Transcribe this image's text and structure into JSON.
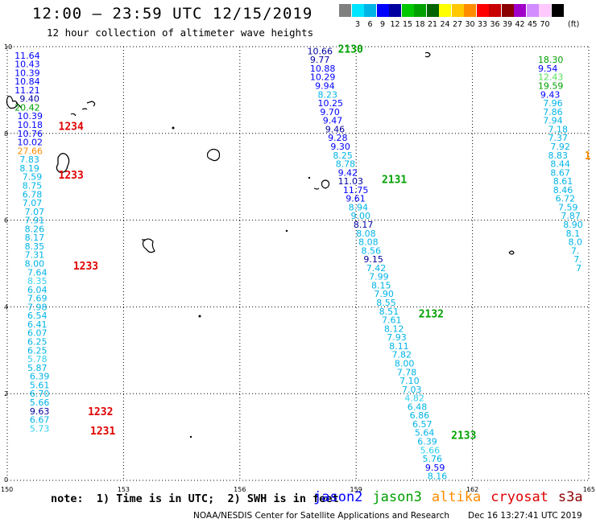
{
  "title": "12:00 – 23:59 UTC 12/15/2019",
  "subtitle": "12 hour collection of altimeter wave heights",
  "color_scale": {
    "unit": "(ft)",
    "labels": [
      "",
      "3",
      "6",
      "9",
      "12",
      "15",
      "18",
      "21",
      "24",
      "27",
      "30",
      "33",
      "36",
      "39",
      "42",
      "45",
      "70",
      ""
    ],
    "colors": [
      "#808080",
      "#00e5ff",
      "#00b4e6",
      "#0000ff",
      "#0000a0",
      "#00c800",
      "#00a000",
      "#006400",
      "#ffff00",
      "#ffc800",
      "#ff8c00",
      "#ff0000",
      "#c80000",
      "#8b0000",
      "#a000c8",
      "#d28cff",
      "#ffc8ff",
      "#000000"
    ]
  },
  "axes": {
    "x_ticks": [
      "150",
      "153",
      "156",
      "159",
      "162",
      "165"
    ],
    "y_ticks": [
      "0",
      "2",
      "4",
      "6",
      "8",
      "10"
    ]
  },
  "satellite_colors": {
    "cyan": "#00b4e6",
    "lightcyan": "#2fd0ef",
    "blue": "#0000ff",
    "navy": "#0000a0",
    "green": "#00a000",
    "lightgreen": "#55e055",
    "orange": "#ff8c00",
    "red": "#e00000"
  },
  "tracks": [
    {
      "name": "west-track",
      "points": [
        {
          "lon": 150.19,
          "lat": 9.8,
          "v": "11.64",
          "c": "blue"
        },
        {
          "lon": 150.19,
          "lat": 9.6,
          "v": "10.43",
          "c": "blue"
        },
        {
          "lon": 150.19,
          "lat": 9.4,
          "v": "10.39",
          "c": "blue"
        },
        {
          "lon": 150.19,
          "lat": 9.2,
          "v": "10.84",
          "c": "blue"
        },
        {
          "lon": 150.19,
          "lat": 9.0,
          "v": "11.21",
          "c": "blue"
        },
        {
          "lon": 150.32,
          "lat": 8.8,
          "v": "9.40",
          "c": "navy"
        },
        {
          "lon": 150.19,
          "lat": 8.6,
          "v": "20.42",
          "c": "green"
        },
        {
          "lon": 150.26,
          "lat": 8.4,
          "v": "10.39",
          "c": "blue"
        },
        {
          "lon": 150.26,
          "lat": 8.2,
          "v": "10.18",
          "c": "blue"
        },
        {
          "lon": 150.26,
          "lat": 8.0,
          "v": "10.76",
          "c": "blue"
        },
        {
          "lon": 150.26,
          "lat": 7.8,
          "v": "10.02",
          "c": "blue"
        },
        {
          "lon": 150.26,
          "lat": 7.6,
          "v": "27.66",
          "c": "orange"
        },
        {
          "lon": 150.32,
          "lat": 7.4,
          "v": "7.83",
          "c": "cyan"
        },
        {
          "lon": 150.32,
          "lat": 7.2,
          "v": "8.19",
          "c": "cyan"
        },
        {
          "lon": 150.39,
          "lat": 7.0,
          "v": "7.59",
          "c": "cyan"
        },
        {
          "lon": 150.39,
          "lat": 6.8,
          "v": "8.75",
          "c": "cyan"
        },
        {
          "lon": 150.39,
          "lat": 6.6,
          "v": "6.78",
          "c": "cyan"
        },
        {
          "lon": 150.39,
          "lat": 6.4,
          "v": "7.07",
          "c": "cyan"
        },
        {
          "lon": 150.45,
          "lat": 6.2,
          "v": "7.07",
          "c": "cyan"
        },
        {
          "lon": 150.45,
          "lat": 6.0,
          "v": "7.91",
          "c": "cyan"
        },
        {
          "lon": 150.45,
          "lat": 5.8,
          "v": "8.26",
          "c": "cyan"
        },
        {
          "lon": 150.45,
          "lat": 5.6,
          "v": "8.17",
          "c": "cyan"
        },
        {
          "lon": 150.45,
          "lat": 5.4,
          "v": "8.35",
          "c": "cyan"
        },
        {
          "lon": 150.45,
          "lat": 5.2,
          "v": "7.31",
          "c": "cyan"
        },
        {
          "lon": 150.45,
          "lat": 5.0,
          "v": "8.00",
          "c": "cyan"
        },
        {
          "lon": 150.52,
          "lat": 4.8,
          "v": "7.64",
          "c": "cyan"
        },
        {
          "lon": 150.52,
          "lat": 4.6,
          "v": "8.35",
          "c": "lightcyan"
        },
        {
          "lon": 150.52,
          "lat": 4.4,
          "v": "6.04",
          "c": "cyan"
        },
        {
          "lon": 150.52,
          "lat": 4.2,
          "v": "7.69",
          "c": "cyan"
        },
        {
          "lon": 150.52,
          "lat": 4.0,
          "v": "7.98",
          "c": "cyan"
        },
        {
          "lon": 150.52,
          "lat": 3.8,
          "v": "6.54",
          "c": "cyan"
        },
        {
          "lon": 150.52,
          "lat": 3.6,
          "v": "6.41",
          "c": "cyan"
        },
        {
          "lon": 150.52,
          "lat": 3.4,
          "v": "6.07",
          "c": "cyan"
        },
        {
          "lon": 150.52,
          "lat": 3.2,
          "v": "6.25",
          "c": "cyan"
        },
        {
          "lon": 150.52,
          "lat": 3.0,
          "v": "6.25",
          "c": "cyan"
        },
        {
          "lon": 150.52,
          "lat": 2.8,
          "v": "5.78",
          "c": "lightcyan"
        },
        {
          "lon": 150.52,
          "lat": 2.6,
          "v": "5.87",
          "c": "cyan"
        },
        {
          "lon": 150.58,
          "lat": 2.4,
          "v": "6.39",
          "c": "cyan"
        },
        {
          "lon": 150.58,
          "lat": 2.2,
          "v": "5.61",
          "c": "cyan"
        },
        {
          "lon": 150.58,
          "lat": 2.0,
          "v": "6.70",
          "c": "cyan"
        },
        {
          "lon": 150.58,
          "lat": 1.8,
          "v": "5.66",
          "c": "cyan"
        },
        {
          "lon": 150.58,
          "lat": 1.6,
          "v": "9.63",
          "c": "navy"
        },
        {
          "lon": 150.58,
          "lat": 1.4,
          "v": "6.67",
          "c": "cyan"
        },
        {
          "lon": 150.58,
          "lat": 1.2,
          "v": "5.73",
          "c": "lightcyan"
        }
      ]
    },
    {
      "name": "middle-track",
      "points": [
        {
          "lon": 157.74,
          "lat": 9.9,
          "v": "10.66",
          "c": "navy"
        },
        {
          "lon": 157.81,
          "lat": 9.7,
          "v": "9.77",
          "c": "navy"
        },
        {
          "lon": 157.81,
          "lat": 9.5,
          "v": "10.88",
          "c": "blue"
        },
        {
          "lon": 157.81,
          "lat": 9.3,
          "v": "10.29",
          "c": "blue"
        },
        {
          "lon": 157.94,
          "lat": 9.1,
          "v": "9.94",
          "c": "blue"
        },
        {
          "lon": 158.01,
          "lat": 8.9,
          "v": "8.23",
          "c": "cyan"
        },
        {
          "lon": 158.01,
          "lat": 8.7,
          "v": "10.25",
          "c": "blue"
        },
        {
          "lon": 158.07,
          "lat": 8.5,
          "v": "9.70",
          "c": "blue"
        },
        {
          "lon": 158.14,
          "lat": 8.3,
          "v": "9.47",
          "c": "blue"
        },
        {
          "lon": 158.2,
          "lat": 8.1,
          "v": "9.46",
          "c": "navy"
        },
        {
          "lon": 158.27,
          "lat": 7.9,
          "v": "9.28",
          "c": "blue"
        },
        {
          "lon": 158.34,
          "lat": 7.7,
          "v": "9.30",
          "c": "blue"
        },
        {
          "lon": 158.4,
          "lat": 7.5,
          "v": "8.25",
          "c": "cyan"
        },
        {
          "lon": 158.47,
          "lat": 7.3,
          "v": "8.78",
          "c": "cyan"
        },
        {
          "lon": 158.53,
          "lat": 7.1,
          "v": "9.42",
          "c": "blue"
        },
        {
          "lon": 158.53,
          "lat": 6.9,
          "v": "11.03",
          "c": "navy"
        },
        {
          "lon": 158.66,
          "lat": 6.7,
          "v": "11.75",
          "c": "blue"
        },
        {
          "lon": 158.73,
          "lat": 6.5,
          "v": "9.61",
          "c": "blue"
        },
        {
          "lon": 158.8,
          "lat": 6.3,
          "v": "8.94",
          "c": "cyan"
        },
        {
          "lon": 158.86,
          "lat": 6.1,
          "v": "9.00",
          "c": "cyan"
        },
        {
          "lon": 158.93,
          "lat": 5.9,
          "v": "8.17",
          "c": "navy"
        },
        {
          "lon": 159.0,
          "lat": 5.7,
          "v": "8.08",
          "c": "cyan"
        },
        {
          "lon": 159.06,
          "lat": 5.5,
          "v": "8.08",
          "c": "cyan"
        },
        {
          "lon": 159.13,
          "lat": 5.3,
          "v": "8.56",
          "c": "cyan"
        },
        {
          "lon": 159.19,
          "lat": 5.1,
          "v": "9.15",
          "c": "navy"
        },
        {
          "lon": 159.26,
          "lat": 4.9,
          "v": "7.42",
          "c": "cyan"
        },
        {
          "lon": 159.33,
          "lat": 4.7,
          "v": "7.99",
          "c": "cyan"
        },
        {
          "lon": 159.39,
          "lat": 4.5,
          "v": "8.15",
          "c": "cyan"
        },
        {
          "lon": 159.46,
          "lat": 4.3,
          "v": "7.90",
          "c": "cyan"
        },
        {
          "lon": 159.52,
          "lat": 4.1,
          "v": "8.55",
          "c": "cyan"
        },
        {
          "lon": 159.59,
          "lat": 3.9,
          "v": "8.51",
          "c": "cyan"
        },
        {
          "lon": 159.66,
          "lat": 3.7,
          "v": "7.61",
          "c": "cyan"
        },
        {
          "lon": 159.72,
          "lat": 3.5,
          "v": "8.12",
          "c": "cyan"
        },
        {
          "lon": 159.79,
          "lat": 3.3,
          "v": "7.93",
          "c": "cyan"
        },
        {
          "lon": 159.85,
          "lat": 3.1,
          "v": "8.11",
          "c": "cyan"
        },
        {
          "lon": 159.92,
          "lat": 2.9,
          "v": "7.82",
          "c": "cyan"
        },
        {
          "lon": 159.99,
          "lat": 2.7,
          "v": "8.00",
          "c": "cyan"
        },
        {
          "lon": 160.05,
          "lat": 2.5,
          "v": "7.78",
          "c": "cyan"
        },
        {
          "lon": 160.12,
          "lat": 2.3,
          "v": "7.10",
          "c": "cyan"
        },
        {
          "lon": 160.18,
          "lat": 2.1,
          "v": "7.03",
          "c": "cyan"
        },
        {
          "lon": 160.25,
          "lat": 1.9,
          "v": "4.82",
          "c": "lightcyan"
        },
        {
          "lon": 160.32,
          "lat": 1.7,
          "v": "6.48",
          "c": "cyan"
        },
        {
          "lon": 160.38,
          "lat": 1.5,
          "v": "6.86",
          "c": "cyan"
        },
        {
          "lon": 160.45,
          "lat": 1.3,
          "v": "6.57",
          "c": "cyan"
        },
        {
          "lon": 160.51,
          "lat": 1.1,
          "v": "5.64",
          "c": "cyan"
        },
        {
          "lon": 160.58,
          "lat": 0.9,
          "v": "6.39",
          "c": "cyan"
        },
        {
          "lon": 160.65,
          "lat": 0.7,
          "v": "5.66",
          "c": "lightcyan"
        },
        {
          "lon": 160.71,
          "lat": 0.5,
          "v": "5.76",
          "c": "cyan"
        },
        {
          "lon": 160.78,
          "lat": 0.3,
          "v": "9.59",
          "c": "blue"
        },
        {
          "lon": 160.84,
          "lat": 0.1,
          "v": "8.16",
          "c": "cyan"
        }
      ]
    },
    {
      "name": "east-track",
      "points": [
        {
          "lon": 163.69,
          "lat": 9.7,
          "v": "18.30",
          "c": "green"
        },
        {
          "lon": 163.69,
          "lat": 9.5,
          "v": "9.54",
          "c": "blue"
        },
        {
          "lon": 163.69,
          "lat": 9.3,
          "v": "12.43",
          "c": "lightgreen"
        },
        {
          "lon": 163.69,
          "lat": 9.1,
          "v": "19.59",
          "c": "green"
        },
        {
          "lon": 163.75,
          "lat": 8.9,
          "v": "9.43",
          "c": "blue"
        },
        {
          "lon": 163.82,
          "lat": 8.7,
          "v": "7.96",
          "c": "cyan"
        },
        {
          "lon": 163.82,
          "lat": 8.5,
          "v": "7.86",
          "c": "cyan"
        },
        {
          "lon": 163.82,
          "lat": 8.3,
          "v": "7.94",
          "c": "cyan"
        },
        {
          "lon": 163.95,
          "lat": 8.1,
          "v": "7.18",
          "c": "cyan"
        },
        {
          "lon": 163.95,
          "lat": 7.9,
          "v": "7.37",
          "c": "cyan"
        },
        {
          "lon": 164.01,
          "lat": 7.7,
          "v": "7.92",
          "c": "cyan"
        },
        {
          "lon": 163.95,
          "lat": 7.5,
          "v": "8.83",
          "c": "cyan"
        },
        {
          "lon": 164.01,
          "lat": 7.3,
          "v": "8.44",
          "c": "cyan"
        },
        {
          "lon": 164.01,
          "lat": 7.1,
          "v": "8.67",
          "c": "cyan"
        },
        {
          "lon": 164.08,
          "lat": 6.9,
          "v": "8.61",
          "c": "cyan"
        },
        {
          "lon": 164.08,
          "lat": 6.7,
          "v": "8.46",
          "c": "cyan"
        },
        {
          "lon": 164.14,
          "lat": 6.5,
          "v": "6.72",
          "c": "cyan"
        },
        {
          "lon": 164.21,
          "lat": 6.3,
          "v": "7.59",
          "c": "cyan"
        },
        {
          "lon": 164.28,
          "lat": 6.1,
          "v": "7.87",
          "c": "cyan"
        },
        {
          "lon": 164.34,
          "lat": 5.9,
          "v": "8.90",
          "c": "cyan"
        },
        {
          "lon": 164.41,
          "lat": 5.7,
          "v": "8.1",
          "c": "cyan"
        },
        {
          "lon": 164.47,
          "lat": 5.5,
          "v": "8.0",
          "c": "cyan"
        },
        {
          "lon": 164.54,
          "lat": 5.3,
          "v": "7.",
          "c": "cyan"
        },
        {
          "lon": 164.61,
          "lat": 5.1,
          "v": "7.",
          "c": "cyan"
        },
        {
          "lon": 164.67,
          "lat": 4.9,
          "v": "7",
          "c": "cyan"
        }
      ]
    }
  ],
  "pass_labels": [
    {
      "text": "1234",
      "lon": 151.32,
      "lat": 8.17,
      "c": "red"
    },
    {
      "text": "1233",
      "lon": 151.32,
      "lat": 7.05,
      "c": "red"
    },
    {
      "text": "1233",
      "lon": 151.7,
      "lat": 4.95,
      "c": "red"
    },
    {
      "text": "1232",
      "lon": 152.08,
      "lat": 1.6,
      "c": "red"
    },
    {
      "text": "1231",
      "lon": 152.14,
      "lat": 1.15,
      "c": "red"
    },
    {
      "text": "2130",
      "lon": 158.53,
      "lat": 9.95,
      "c": "green"
    },
    {
      "text": "2131",
      "lon": 159.66,
      "lat": 6.95,
      "c": "green"
    },
    {
      "text": "2132",
      "lon": 160.61,
      "lat": 3.85,
      "c": "green"
    },
    {
      "text": "2133",
      "lon": 161.45,
      "lat": 1.05,
      "c": "green"
    },
    {
      "text": "1",
      "lon": 164.89,
      "lat": 7.5,
      "c": "orange"
    }
  ],
  "note": "note:  1) Time is in UTC;  2) SWH is in feet",
  "satellites": [
    {
      "name": "jason2",
      "color": "#0000ff"
    },
    {
      "name": "jason3",
      "color": "#00a000"
    },
    {
      "name": "altika",
      "color": "#ff8c00"
    },
    {
      "name": "cryosat",
      "color": "#e00000"
    },
    {
      "name": "s3a",
      "color": "#8b0000"
    }
  ],
  "credit": "NOAA/NESDIS Center for Satellite Applications and Research",
  "timestamp": "Dec 16 13:27:41 UTC 2019"
}
